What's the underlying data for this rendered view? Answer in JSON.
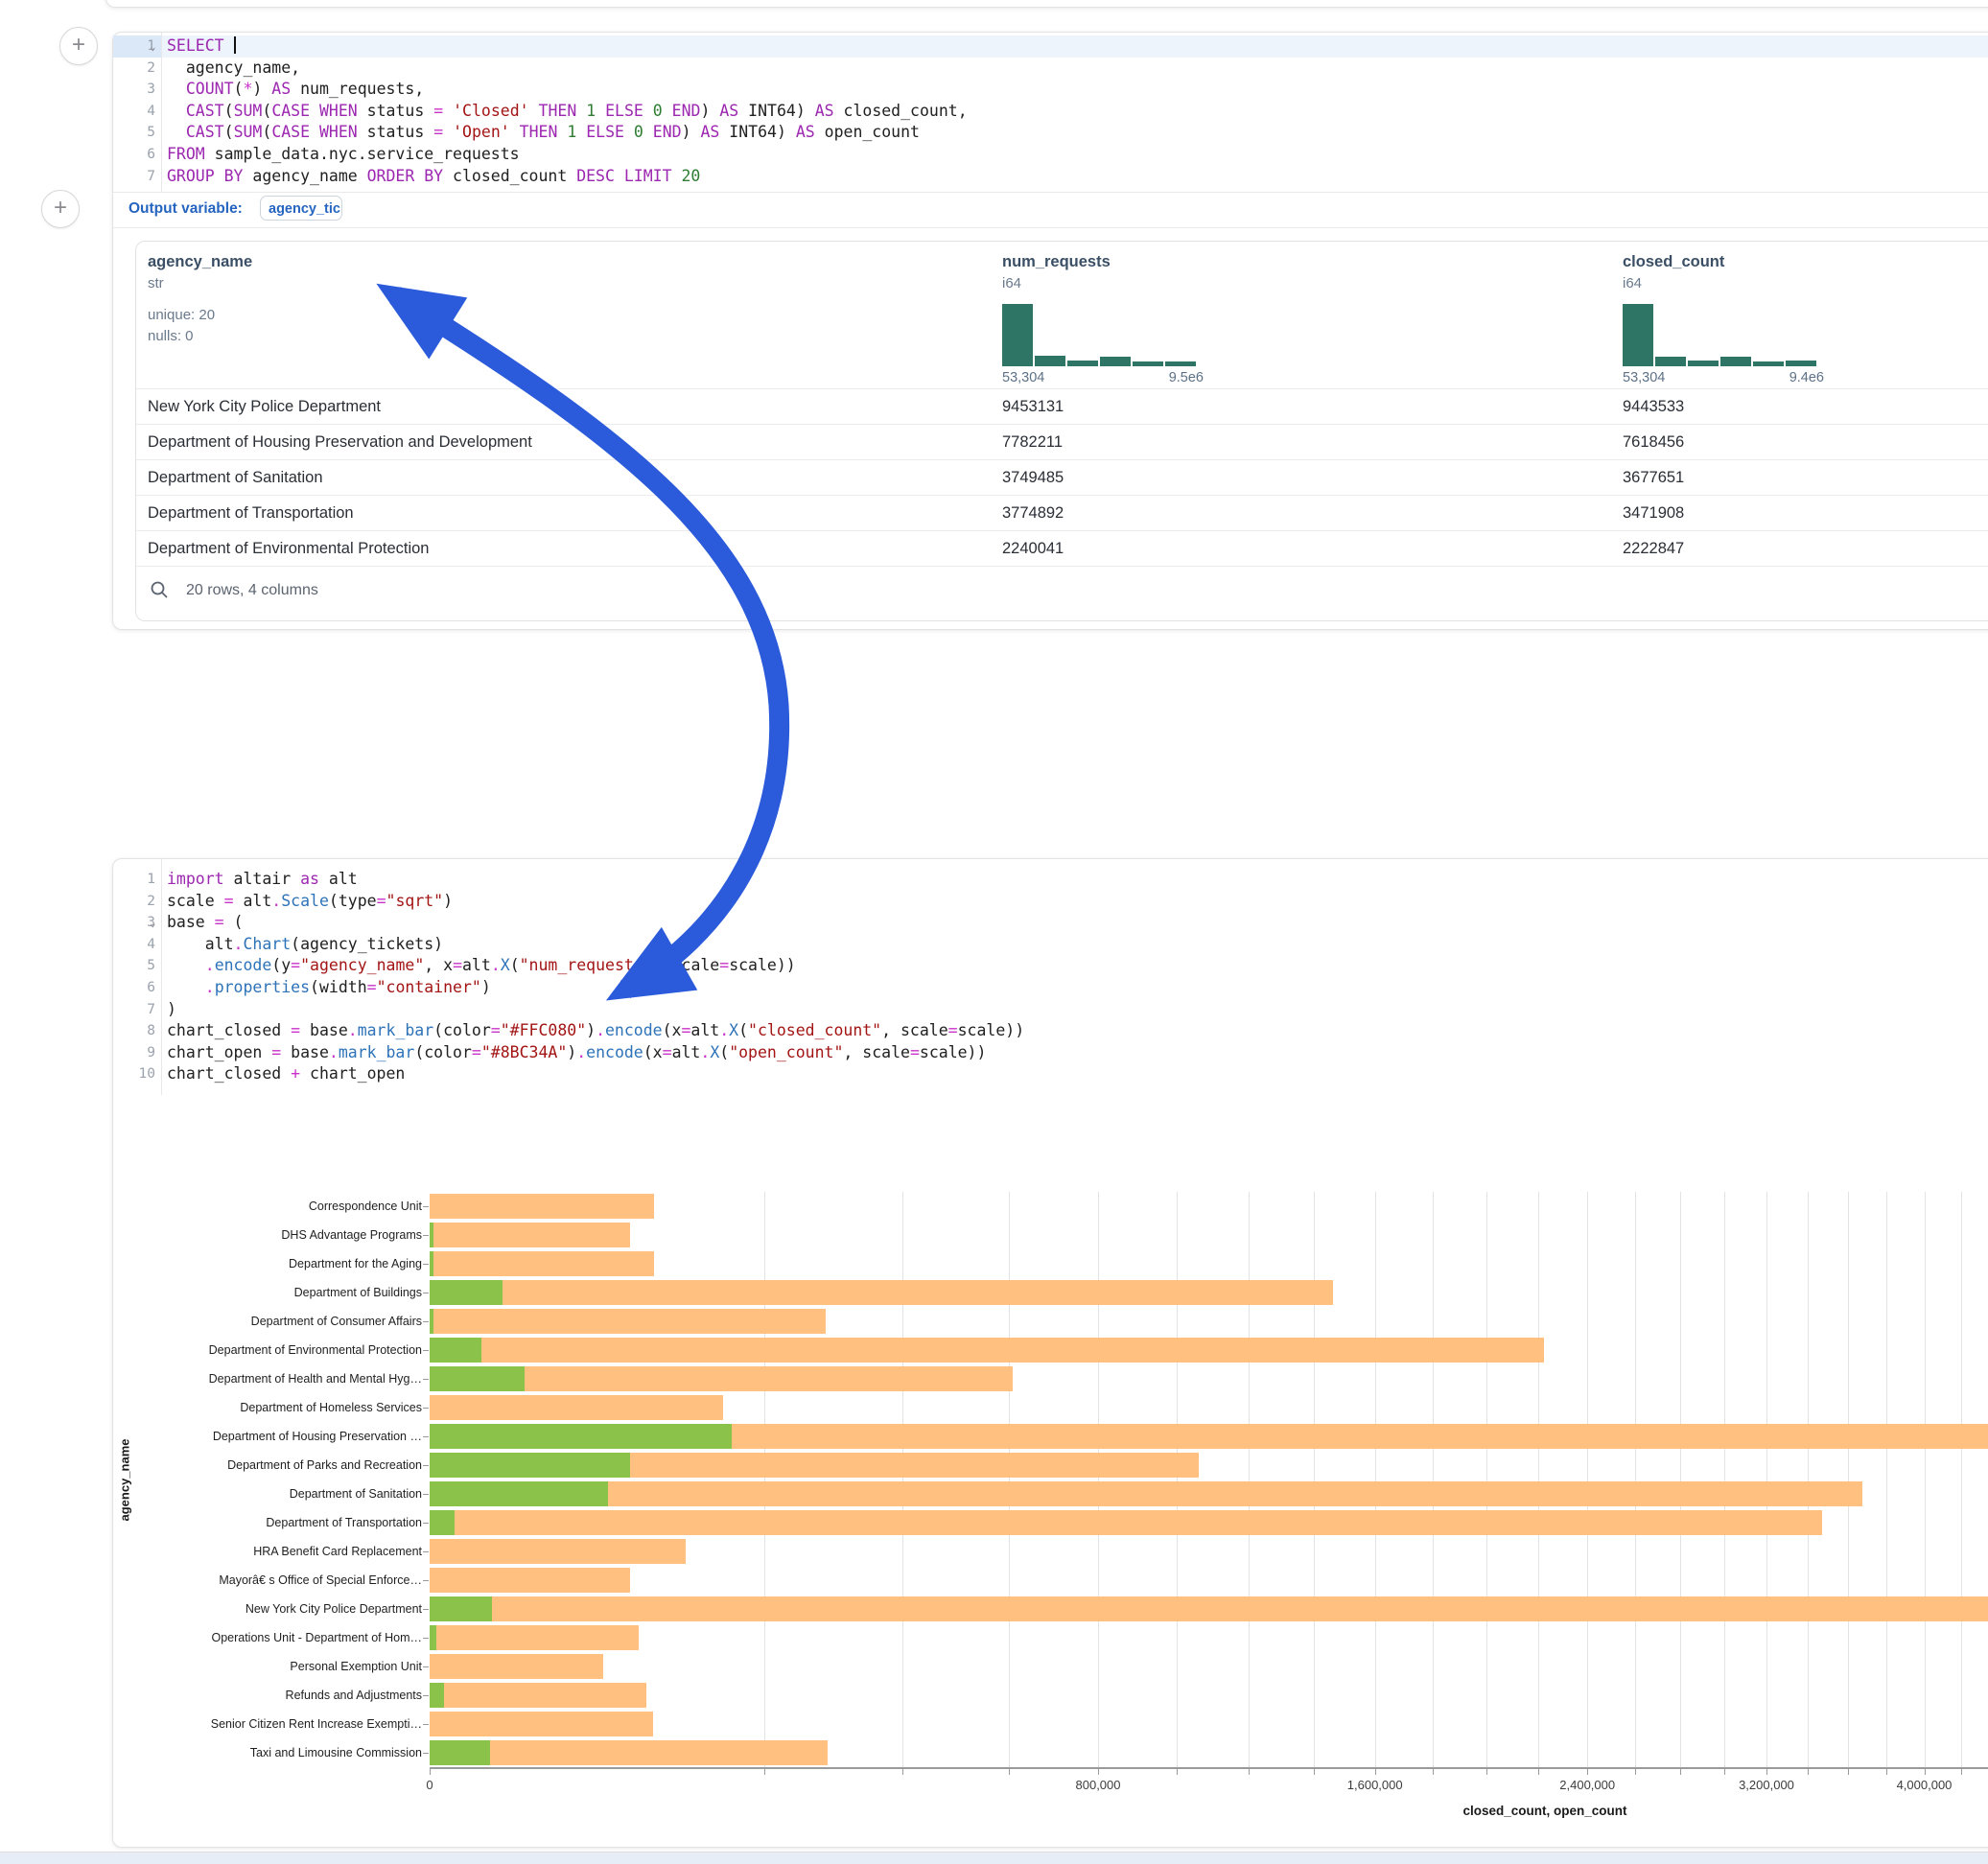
{
  "sql_cell": {
    "line_numbers": [
      "1",
      "2",
      "3",
      "4",
      "5",
      "6",
      "7"
    ],
    "collapsed_chevron_lines": [
      1
    ],
    "highlight_line": 1,
    "lines": [
      [
        [
          "kw",
          "SELECT"
        ],
        [
          "pl",
          " "
        ],
        [
          "cursor",
          ""
        ]
      ],
      [
        [
          "pl",
          "  agency_name,"
        ]
      ],
      [
        [
          "pl",
          "  "
        ],
        [
          "kw",
          "COUNT"
        ],
        [
          "pl",
          "("
        ],
        [
          "op",
          "*"
        ],
        [
          "pl",
          ") "
        ],
        [
          "kw",
          "AS"
        ],
        [
          "pl",
          " num_requests,"
        ]
      ],
      [
        [
          "pl",
          "  "
        ],
        [
          "kw",
          "CAST"
        ],
        [
          "pl",
          "("
        ],
        [
          "kw",
          "SUM"
        ],
        [
          "pl",
          "("
        ],
        [
          "kw",
          "CASE"
        ],
        [
          "pl",
          " "
        ],
        [
          "kw",
          "WHEN"
        ],
        [
          "pl",
          " status "
        ],
        [
          "op",
          "="
        ],
        [
          "pl",
          " "
        ],
        [
          "str",
          "'Closed'"
        ],
        [
          "pl",
          " "
        ],
        [
          "kw",
          "THEN"
        ],
        [
          "pl",
          " "
        ],
        [
          "num",
          "1"
        ],
        [
          "pl",
          " "
        ],
        [
          "kw",
          "ELSE"
        ],
        [
          "pl",
          " "
        ],
        [
          "num",
          "0"
        ],
        [
          "pl",
          " "
        ],
        [
          "kw",
          "END"
        ],
        [
          "pl",
          ") "
        ],
        [
          "kw",
          "AS"
        ],
        [
          "pl",
          " INT64) "
        ],
        [
          "kw",
          "AS"
        ],
        [
          "pl",
          " closed_count,"
        ]
      ],
      [
        [
          "pl",
          "  "
        ],
        [
          "kw",
          "CAST"
        ],
        [
          "pl",
          "("
        ],
        [
          "kw",
          "SUM"
        ],
        [
          "pl",
          "("
        ],
        [
          "kw",
          "CASE"
        ],
        [
          "pl",
          " "
        ],
        [
          "kw",
          "WHEN"
        ],
        [
          "pl",
          " status "
        ],
        [
          "op",
          "="
        ],
        [
          "pl",
          " "
        ],
        [
          "str",
          "'Open'"
        ],
        [
          "pl",
          " "
        ],
        [
          "kw",
          "THEN"
        ],
        [
          "pl",
          " "
        ],
        [
          "num",
          "1"
        ],
        [
          "pl",
          " "
        ],
        [
          "kw",
          "ELSE"
        ],
        [
          "pl",
          " "
        ],
        [
          "num",
          "0"
        ],
        [
          "pl",
          " "
        ],
        [
          "kw",
          "END"
        ],
        [
          "pl",
          ") "
        ],
        [
          "kw",
          "AS"
        ],
        [
          "pl",
          " INT64) "
        ],
        [
          "kw",
          "AS"
        ],
        [
          "pl",
          " open_count"
        ]
      ],
      [
        [
          "kw",
          "FROM"
        ],
        [
          "pl",
          " sample_data.nyc.service_requests"
        ]
      ],
      [
        [
          "kw",
          "GROUP"
        ],
        [
          "pl",
          " "
        ],
        [
          "kw",
          "BY"
        ],
        [
          "pl",
          " agency_name "
        ],
        [
          "kw",
          "ORDER"
        ],
        [
          "pl",
          " "
        ],
        [
          "kw",
          "BY"
        ],
        [
          "pl",
          " closed_count "
        ],
        [
          "kw",
          "DESC"
        ],
        [
          "pl",
          " "
        ],
        [
          "kw",
          "LIMIT"
        ],
        [
          "pl",
          " "
        ],
        [
          "num",
          "20"
        ]
      ]
    ],
    "output_variable_label": "Output variable:",
    "output_variable_value": "agency_tickets"
  },
  "table": {
    "columns": [
      {
        "name": "agency_name",
        "type": "str",
        "meta": [
          "unique: 20",
          "nulls: 0"
        ]
      },
      {
        "name": "num_requests",
        "type": "i64",
        "hist": [
          1,
          0.17,
          0.09,
          0.16,
          0.08,
          0.08
        ],
        "hist_min": "53,304",
        "hist_max": "9.5e6"
      },
      {
        "name": "closed_count",
        "type": "i64",
        "hist": [
          1,
          0.16,
          0.09,
          0.16,
          0.08,
          0.09
        ],
        "hist_min": "53,304",
        "hist_max": "9.4e6"
      }
    ],
    "rows": [
      {
        "agency_name": "New York City Police Department",
        "num_requests": "9453131",
        "closed_count": "9443533"
      },
      {
        "agency_name": "Department of Housing Preservation and Development",
        "num_requests": "7782211",
        "closed_count": "7618456"
      },
      {
        "agency_name": "Department of Sanitation",
        "num_requests": "3749485",
        "closed_count": "3677651"
      },
      {
        "agency_name": "Department of Transportation",
        "num_requests": "3774892",
        "closed_count": "3471908"
      },
      {
        "agency_name": "Department of Environmental Protection",
        "num_requests": "2240041",
        "closed_count": "2222847"
      }
    ],
    "footer": "20 rows, 4 columns"
  },
  "python_cell": {
    "line_numbers": [
      "1",
      "2",
      "3",
      "4",
      "5",
      "6",
      "7",
      "8",
      "9",
      "10"
    ],
    "collapsed_chevron_lines": [
      3
    ],
    "lines": [
      [
        [
          "kw",
          "import"
        ],
        [
          "pl",
          " altair "
        ],
        [
          "kw",
          "as"
        ],
        [
          "pl",
          " alt"
        ]
      ],
      [
        [
          "pl",
          "scale "
        ],
        [
          "op",
          "="
        ],
        [
          "pl",
          " alt"
        ],
        [
          "op",
          "."
        ],
        [
          "fn",
          "Scale"
        ],
        [
          "pl",
          "(type"
        ],
        [
          "op",
          "="
        ],
        [
          "str",
          "\"sqrt\""
        ],
        [
          "pl",
          ")"
        ]
      ],
      [
        [
          "pl",
          "base "
        ],
        [
          "op",
          "="
        ],
        [
          "pl",
          " ("
        ]
      ],
      [
        [
          "pl",
          "    alt"
        ],
        [
          "op",
          "."
        ],
        [
          "fn",
          "Chart"
        ],
        [
          "pl",
          "(agency_tickets)"
        ]
      ],
      [
        [
          "pl",
          "    "
        ],
        [
          "op",
          "."
        ],
        [
          "fn",
          "encode"
        ],
        [
          "pl",
          "(y"
        ],
        [
          "op",
          "="
        ],
        [
          "str",
          "\"agency_name\""
        ],
        [
          "pl",
          ", x"
        ],
        [
          "op",
          "="
        ],
        [
          "pl",
          "alt"
        ],
        [
          "op",
          "."
        ],
        [
          "fn",
          "X"
        ],
        [
          "pl",
          "("
        ],
        [
          "str",
          "\"num_requests\""
        ],
        [
          "pl",
          ", scale"
        ],
        [
          "op",
          "="
        ],
        [
          "pl",
          "scale))"
        ]
      ],
      [
        [
          "pl",
          "    "
        ],
        [
          "op",
          "."
        ],
        [
          "fn",
          "properties"
        ],
        [
          "pl",
          "(width"
        ],
        [
          "op",
          "="
        ],
        [
          "str",
          "\"container\""
        ],
        [
          "pl",
          ")"
        ]
      ],
      [
        [
          "pl",
          ")"
        ]
      ],
      [
        [
          "pl",
          "chart_closed "
        ],
        [
          "op",
          "="
        ],
        [
          "pl",
          " base"
        ],
        [
          "op",
          "."
        ],
        [
          "fn",
          "mark_bar"
        ],
        [
          "pl",
          "(color"
        ],
        [
          "op",
          "="
        ],
        [
          "str",
          "\"#FFC080\""
        ],
        [
          "pl",
          ")"
        ],
        [
          "op",
          "."
        ],
        [
          "fn",
          "encode"
        ],
        [
          "pl",
          "(x"
        ],
        [
          "op",
          "="
        ],
        [
          "pl",
          "alt"
        ],
        [
          "op",
          "."
        ],
        [
          "fn",
          "X"
        ],
        [
          "pl",
          "("
        ],
        [
          "str",
          "\"closed_count\""
        ],
        [
          "pl",
          ", scale"
        ],
        [
          "op",
          "="
        ],
        [
          "pl",
          "scale))"
        ]
      ],
      [
        [
          "pl",
          "chart_open "
        ],
        [
          "op",
          "="
        ],
        [
          "pl",
          " base"
        ],
        [
          "op",
          "."
        ],
        [
          "fn",
          "mark_bar"
        ],
        [
          "pl",
          "(color"
        ],
        [
          "op",
          "="
        ],
        [
          "str",
          "\"#8BC34A\""
        ],
        [
          "pl",
          ")"
        ],
        [
          "op",
          "."
        ],
        [
          "fn",
          "encode"
        ],
        [
          "pl",
          "(x"
        ],
        [
          "op",
          "="
        ],
        [
          "pl",
          "alt"
        ],
        [
          "op",
          "."
        ],
        [
          "fn",
          "X"
        ],
        [
          "pl",
          "("
        ],
        [
          "str",
          "\"open_count\""
        ],
        [
          "pl",
          ", scale"
        ],
        [
          "op",
          "="
        ],
        [
          "pl",
          "scale))"
        ]
      ],
      [
        [
          "pl",
          "chart_closed "
        ],
        [
          "op",
          "+"
        ],
        [
          "pl",
          " chart_open"
        ]
      ]
    ]
  },
  "chart_data": {
    "type": "bar",
    "orientation": "horizontal",
    "layering": "layered (open over closed)",
    "x_scale": "sqrt",
    "xlabel": "closed_count, open_count",
    "ylabel": "agency_name",
    "grid": true,
    "gridline_step": 200000,
    "x_tick_values": [
      0,
      800000,
      1600000,
      2400000,
      3200000,
      4000000
    ],
    "x_tick_labels": [
      "0",
      "800,000",
      "1,600,000",
      "2,400,000",
      "3,200,000",
      "4,000,000"
    ],
    "categories": [
      "Correspondence Unit",
      "DHS Advantage Programs",
      "Department for the Aging",
      "Department of Buildings",
      "Department of Consumer Affairs",
      "Department of Environmental Protection",
      "Department of Health and Mental Hyg…",
      "Department of Homeless Services",
      "Department of Housing Preservation …",
      "Department of Parks and Recreation",
      "Department of Sanitation",
      "Department of Transportation",
      "HRA Benefit Card Replacement",
      "Mayorâ€ s Office of Special Enforce…",
      "New York City Police Department",
      "Operations Unit - Department of Hom…",
      "Personal Exemption Unit",
      "Refunds and Adjustments",
      "Senior Citizen Rent Increase Exempti…",
      "Taxi and Limousine Commission"
    ],
    "series": [
      {
        "name": "closed_count",
        "color": "#FFC080",
        "values": [
          90000,
          72000,
          90000,
          1460000,
          281000,
          2222847,
          609000,
          154000,
          7618456,
          1060000,
          3677651,
          3471908,
          117000,
          72000,
          9443533,
          78000,
          54000,
          84000,
          89000,
          284000
        ]
      },
      {
        "name": "open_count",
        "color": "#8BC34A",
        "values": [
          0,
          25,
          25,
          9500,
          25,
          4800,
          16000,
          0,
          163000,
          72000,
          57000,
          1100,
          0,
          0,
          7000,
          80,
          0,
          350,
          0,
          6500
        ]
      }
    ]
  },
  "annotation": {
    "arrow_color": "#2B5BDB"
  },
  "colors": {
    "keyword": "#9C27B0",
    "string": "#A31515",
    "number": "#2e7d32",
    "operator": "#C832C8",
    "function": "#2E73B8",
    "hist_bar": "#2F7565",
    "closed_bar": "#FFC080",
    "open_bar": "#8BC34A",
    "accent_blue": "#2565BF"
  }
}
